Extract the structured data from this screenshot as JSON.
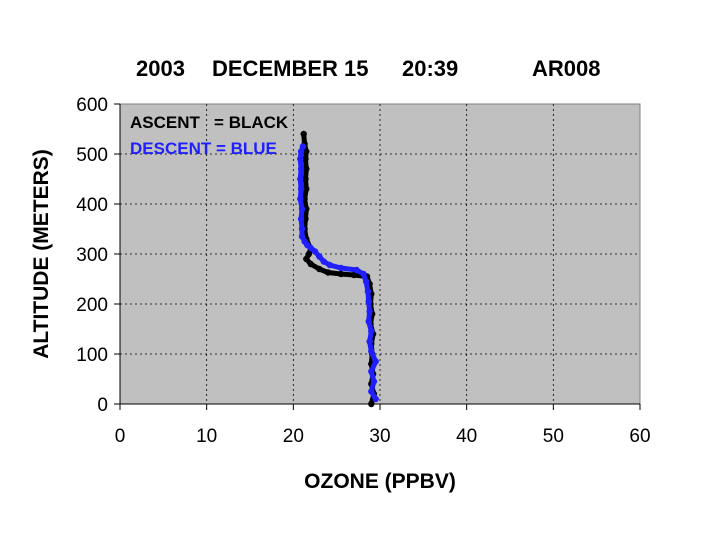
{
  "chart_data": {
    "type": "line",
    "title": {
      "year": "2003",
      "date": "DECEMBER 15",
      "time": "20:39",
      "id": "AR008"
    },
    "xlabel": "OZONE (PPBV)",
    "ylabel": "ALTITUDE (METERS)",
    "xlim": [
      0,
      60
    ],
    "ylim": [
      0,
      600
    ],
    "xticks": [
      "0",
      "10",
      "20",
      "30",
      "40",
      "50",
      "60"
    ],
    "yticks": [
      "0",
      "100",
      "200",
      "300",
      "400",
      "500",
      "600"
    ],
    "grid": true,
    "plot_background": "#c0c0c0",
    "legend": {
      "placement": "top-left",
      "entries": [
        {
          "label": "ASCENT   = BLACK",
          "color": "#000000"
        },
        {
          "label": "DESCENT = BLUE",
          "color": "#1f1fff"
        }
      ]
    },
    "series": [
      {
        "color": "#000000",
        "points": [
          [
            29.0,
            0
          ],
          [
            29.3,
            20
          ],
          [
            29.0,
            40
          ],
          [
            29.2,
            60
          ],
          [
            29.0,
            80
          ],
          [
            29.1,
            100
          ],
          [
            29.0,
            120
          ],
          [
            29.2,
            140
          ],
          [
            28.9,
            160
          ],
          [
            29.1,
            180
          ],
          [
            28.9,
            200
          ],
          [
            29.0,
            220
          ],
          [
            28.8,
            240
          ],
          [
            28.5,
            255
          ],
          [
            27.0,
            258
          ],
          [
            25.5,
            260
          ],
          [
            24.0,
            263
          ],
          [
            23.0,
            270
          ],
          [
            22.0,
            280
          ],
          [
            21.5,
            290
          ],
          [
            21.8,
            300
          ],
          [
            22.0,
            310
          ],
          [
            21.5,
            330
          ],
          [
            21.3,
            350
          ],
          [
            21.4,
            370
          ],
          [
            21.5,
            390
          ],
          [
            21.3,
            410
          ],
          [
            21.5,
            430
          ],
          [
            21.4,
            450
          ],
          [
            21.5,
            470
          ],
          [
            21.4,
            490
          ],
          [
            21.5,
            505
          ],
          [
            21.3,
            520
          ],
          [
            21.2,
            540
          ]
        ]
      },
      {
        "color": "#1f1fff",
        "points": [
          [
            29.5,
            10
          ],
          [
            29.0,
            25
          ],
          [
            29.3,
            45
          ],
          [
            29.0,
            65
          ],
          [
            29.5,
            85
          ],
          [
            29.0,
            105
          ],
          [
            28.8,
            125
          ],
          [
            29.0,
            145
          ],
          [
            28.7,
            165
          ],
          [
            28.8,
            185
          ],
          [
            28.7,
            205
          ],
          [
            28.6,
            225
          ],
          [
            28.4,
            245
          ],
          [
            28.1,
            260
          ],
          [
            27.3,
            268
          ],
          [
            25.5,
            272
          ],
          [
            24.2,
            278
          ],
          [
            23.5,
            285
          ],
          [
            23.0,
            295
          ],
          [
            22.5,
            305
          ],
          [
            22.0,
            312
          ],
          [
            21.6,
            318
          ],
          [
            21.3,
            325
          ],
          [
            21.0,
            335
          ],
          [
            21.0,
            350
          ],
          [
            20.9,
            370
          ],
          [
            21.0,
            390
          ],
          [
            20.8,
            410
          ],
          [
            20.9,
            430
          ],
          [
            20.8,
            450
          ],
          [
            20.9,
            470
          ],
          [
            20.8,
            490
          ],
          [
            20.9,
            505
          ],
          [
            21.1,
            515
          ]
        ]
      }
    ]
  }
}
